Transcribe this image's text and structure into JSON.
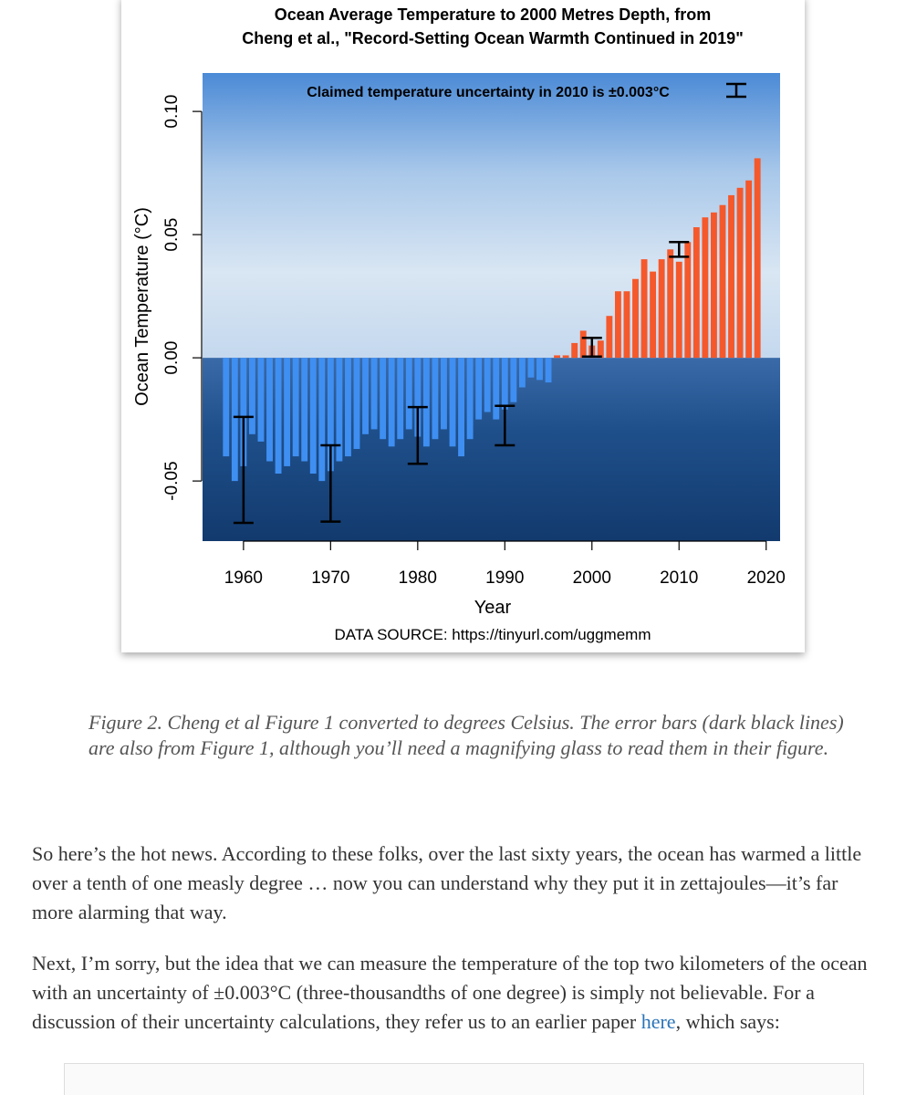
{
  "chart_data": {
    "type": "bar",
    "title": [
      "Ocean Average Temperature to 2000 Metres Depth, from",
      "Cheng et al., \"Record-Setting Ocean Warmth Continued in 2019\""
    ],
    "annotation": "Claimed temperature uncertainty in 2010 is ±0.003°C",
    "source": "DATA SOURCE: https://tinyurl.com/uggmemm",
    "xlabel": "Year",
    "ylabel": "Ocean Temperature (°C)",
    "x": [
      1958,
      1959,
      1960,
      1961,
      1962,
      1963,
      1964,
      1965,
      1966,
      1967,
      1968,
      1969,
      1970,
      1971,
      1972,
      1973,
      1974,
      1975,
      1976,
      1977,
      1978,
      1979,
      1980,
      1981,
      1982,
      1983,
      1984,
      1985,
      1986,
      1987,
      1988,
      1989,
      1990,
      1991,
      1992,
      1993,
      1994,
      1995,
      1996,
      1997,
      1998,
      1999,
      2000,
      2001,
      2002,
      2003,
      2004,
      2005,
      2006,
      2007,
      2008,
      2009,
      2010,
      2011,
      2012,
      2013,
      2014,
      2015,
      2016,
      2017,
      2018,
      2019
    ],
    "values": [
      -0.04,
      -0.05,
      -0.044,
      -0.031,
      -0.034,
      -0.042,
      -0.047,
      -0.044,
      -0.04,
      -0.042,
      -0.047,
      -0.05,
      -0.046,
      -0.042,
      -0.04,
      -0.037,
      -0.031,
      -0.029,
      -0.033,
      -0.036,
      -0.033,
      -0.029,
      -0.032,
      -0.036,
      -0.033,
      -0.029,
      -0.036,
      -0.04,
      -0.033,
      -0.025,
      -0.022,
      -0.025,
      -0.021,
      -0.018,
      -0.012,
      -0.008,
      -0.009,
      -0.01,
      0.001,
      0.001,
      0.006,
      0.011,
      0.005,
      0.007,
      0.017,
      0.027,
      0.027,
      0.032,
      0.04,
      0.035,
      0.04,
      0.044,
      0.039,
      0.047,
      0.053,
      0.057,
      0.059,
      0.062,
      0.066,
      0.069,
      0.072,
      0.081
    ],
    "color_negative": "#3f8ff2",
    "color_positive": "#f5582b",
    "error_bars": [
      {
        "x": 1960,
        "center": -0.0455,
        "error": 0.0215
      },
      {
        "x": 1970,
        "center": -0.051,
        "error": 0.0155
      },
      {
        "x": 1980,
        "center": -0.0315,
        "error": 0.0115
      },
      {
        "x": 1990,
        "center": -0.0275,
        "error": 0.008
      },
      {
        "x": 2000,
        "center": 0.0043,
        "error": 0.0038
      },
      {
        "x": 2010,
        "center": 0.044,
        "error": 0.003
      }
    ],
    "xlim": [
      1955.3,
      2021.6
    ],
    "xticks": [
      1960,
      1970,
      1980,
      1990,
      2000,
      2010,
      2020
    ],
    "ylim": [
      -0.0744,
      0.1156
    ],
    "yticks": [
      {
        "value": 0.1,
        "label": "0.10"
      },
      0.05,
      {
        "value": 0,
        "label": "0.00"
      },
      -0.05
    ]
  },
  "caption": "Figure 2. Cheng et al Figure 1 converted to degrees Celsius. The error bars (dark black lines) are also from Figure 1, although you’ll need a magnifying glass to read them in their figure.",
  "paragraphs": [
    {
      "text": "So here’s the hot news. According to these folks, over the last sixty years, the ocean has warmed a little over a tenth of one measly degree … now you can understand why they put it in zettajoules—it’s far more alarming that way."
    },
    {
      "text": "Next, I’m sorry, but the idea that we can measure the temperature of the top two kilometers of the ocean with an uncertainty of ±0.003°C (three-thousandths of one degree) is simply not believable. For a discussion of their uncertainty calculations, they refer us to an earlier paper ",
      "link": "here",
      "after": ", which says:"
    }
  ]
}
